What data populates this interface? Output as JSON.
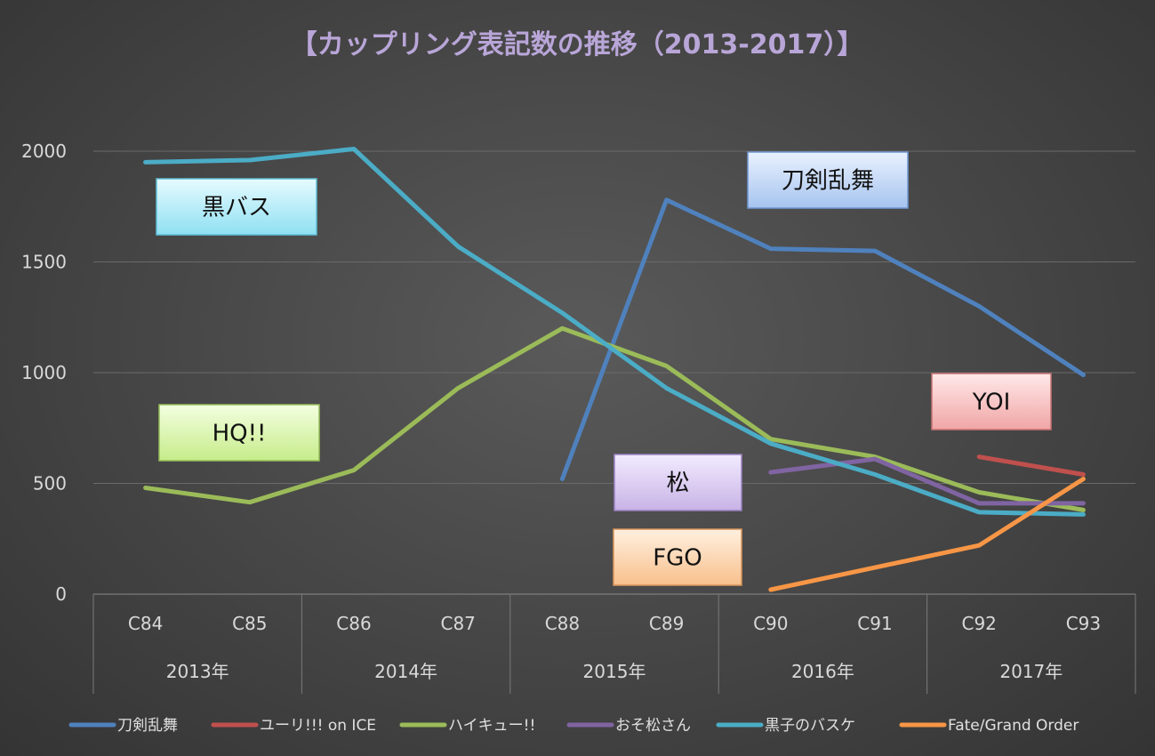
{
  "chart_data": {
    "type": "line",
    "title": "【カップリング表記数の推移（2013-2017）】",
    "categories": [
      "C84",
      "C85",
      "C86",
      "C87",
      "C88",
      "C89",
      "C90",
      "C91",
      "C92",
      "C93"
    ],
    "groups": [
      {
        "label": "2013年",
        "span": 2
      },
      {
        "label": "2014年",
        "span": 2
      },
      {
        "label": "2015年",
        "span": 2
      },
      {
        "label": "2016年",
        "span": 2
      },
      {
        "label": "2017年",
        "span": 2
      }
    ],
    "ylim": [
      0,
      2000
    ],
    "yticks": [
      0,
      500,
      1000,
      1500,
      2000
    ],
    "grid": true,
    "legend_position": "bottom",
    "series": [
      {
        "name": "刀剣乱舞",
        "color": "#4f81bd",
        "values": [
          null,
          null,
          null,
          null,
          520,
          1780,
          1560,
          1550,
          1300,
          990
        ]
      },
      {
        "name": "ユーリ!!! on ICE",
        "color": "#c0504d",
        "values": [
          null,
          null,
          null,
          null,
          null,
          null,
          null,
          null,
          620,
          540
        ]
      },
      {
        "name": "ハイキュー!!",
        "color": "#9bbb59",
        "values": [
          480,
          415,
          560,
          930,
          1200,
          1030,
          700,
          620,
          460,
          380
        ]
      },
      {
        "name": "おそ松さん",
        "color": "#8064a2",
        "values": [
          null,
          null,
          null,
          null,
          null,
          null,
          550,
          610,
          410,
          410
        ]
      },
      {
        "name": "黒子のバスケ",
        "color": "#4bacc6",
        "values": [
          1950,
          1960,
          2010,
          1570,
          1270,
          930,
          680,
          540,
          370,
          360
        ]
      },
      {
        "name": "Fate/Grand Order",
        "color": "#f79646",
        "values": [
          null,
          null,
          null,
          null,
          null,
          null,
          20,
          120,
          220,
          520
        ]
      }
    ],
    "annotations": [
      {
        "text": "黒バス",
        "series": "黒子のバスケ",
        "fill_top": "#e6fbff",
        "fill_bottom": "#8fe0f2",
        "border": "#5fbfd6"
      },
      {
        "text": "刀剣乱舞",
        "series": "刀剣乱舞",
        "fill_top": "#e9f1ff",
        "fill_bottom": "#a6c4ef",
        "border": "#6f96d2"
      },
      {
        "text": "HQ!!",
        "series": "ハイキュー!!",
        "fill_top": "#f3ffe0",
        "fill_bottom": "#c6ec8a",
        "border": "#97bd5a"
      },
      {
        "text": "YOI",
        "series": "ユーリ!!! on ICE",
        "fill_top": "#ffe9e9",
        "fill_bottom": "#f0a5a5",
        "border": "#c87373"
      },
      {
        "text": "松",
        "series": "おそ松さん",
        "fill_top": "#f2ebff",
        "fill_bottom": "#c8b3e6",
        "border": "#9a82c1"
      },
      {
        "text": "FGO",
        "series": "Fate/Grand Order",
        "fill_top": "#fff0e0",
        "fill_bottom": "#f8c08c",
        "border": "#d8955a"
      }
    ]
  }
}
